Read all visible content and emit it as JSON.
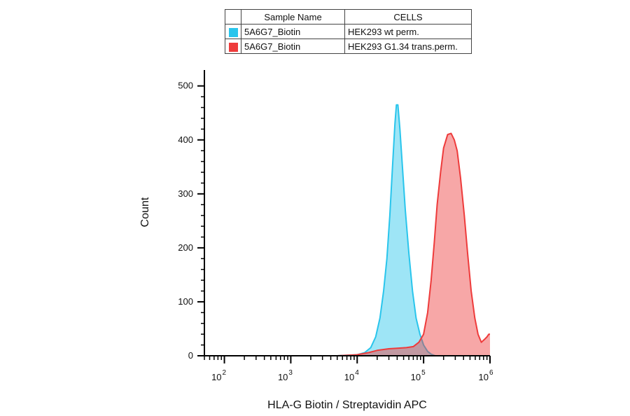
{
  "legend": {
    "headers": [
      "Sample Name",
      "CELLS"
    ],
    "rows": [
      {
        "sample": "5A6G7_Biotin",
        "cells": "HEK293 wt perm.",
        "color": "#29c5ec"
      },
      {
        "sample": "5A6G7_Biotin",
        "cells": "HEK293 G1.34 trans.perm.",
        "color": "#ee3b3b"
      }
    ]
  },
  "chart_data": {
    "type": "area",
    "title": "",
    "xlabel": "HLA-G Biotin / Streptavidin APC",
    "ylabel": "Count",
    "xscale": "log",
    "xlim": [
      50,
      1000000
    ],
    "ylim": [
      0,
      500
    ],
    "yticks": [
      0,
      100,
      200,
      300,
      400,
      500
    ],
    "xtick_labels": [
      {
        "base": "10",
        "exp": "2",
        "value": 100
      },
      {
        "base": "10",
        "exp": "3",
        "value": 1000
      },
      {
        "base": "10",
        "exp": "4",
        "value": 10000
      },
      {
        "base": "10",
        "exp": "5",
        "value": 100000
      },
      {
        "base": "10",
        "exp": "6",
        "value": 1000000
      }
    ],
    "grid": false,
    "series": [
      {
        "sample": "5A6G7_Biotin",
        "cells": "HEK293 wt perm.",
        "color": "#29c5ec",
        "points": [
          [
            50,
            0
          ],
          [
            500,
            0
          ],
          [
            1000,
            0
          ],
          [
            5000,
            0
          ],
          [
            10000,
            2
          ],
          [
            13000,
            6
          ],
          [
            16000,
            15
          ],
          [
            19000,
            35
          ],
          [
            22000,
            70
          ],
          [
            25000,
            120
          ],
          [
            28000,
            180
          ],
          [
            31000,
            260
          ],
          [
            34000,
            350
          ],
          [
            37000,
            430
          ],
          [
            39000,
            465
          ],
          [
            41000,
            465
          ],
          [
            44000,
            420
          ],
          [
            48000,
            350
          ],
          [
            53000,
            270
          ],
          [
            60000,
            190
          ],
          [
            68000,
            120
          ],
          [
            77000,
            70
          ],
          [
            88000,
            40
          ],
          [
            100000,
            20
          ],
          [
            115000,
            8
          ],
          [
            130000,
            3
          ],
          [
            150000,
            0
          ],
          [
            1000000,
            0
          ]
        ]
      },
      {
        "sample": "5A6G7_Biotin",
        "cells": "HEK293 G1.34 trans.perm.",
        "color": "#ee3b3b",
        "points": [
          [
            50,
            0
          ],
          [
            5000,
            0
          ],
          [
            10000,
            2
          ],
          [
            15000,
            6
          ],
          [
            20000,
            10
          ],
          [
            30000,
            13
          ],
          [
            40000,
            14
          ],
          [
            55000,
            15
          ],
          [
            70000,
            17
          ],
          [
            85000,
            25
          ],
          [
            100000,
            40
          ],
          [
            115000,
            80
          ],
          [
            130000,
            140
          ],
          [
            145000,
            210
          ],
          [
            160000,
            280
          ],
          [
            180000,
            340
          ],
          [
            200000,
            385
          ],
          [
            230000,
            410
          ],
          [
            260000,
            412
          ],
          [
            290000,
            400
          ],
          [
            320000,
            380
          ],
          [
            360000,
            330
          ],
          [
            410000,
            260
          ],
          [
            460000,
            190
          ],
          [
            520000,
            120
          ],
          [
            590000,
            70
          ],
          [
            660000,
            40
          ],
          [
            740000,
            25
          ],
          [
            820000,
            30
          ],
          [
            900000,
            35
          ],
          [
            960000,
            40
          ],
          [
            1000000,
            40
          ]
        ]
      }
    ]
  }
}
